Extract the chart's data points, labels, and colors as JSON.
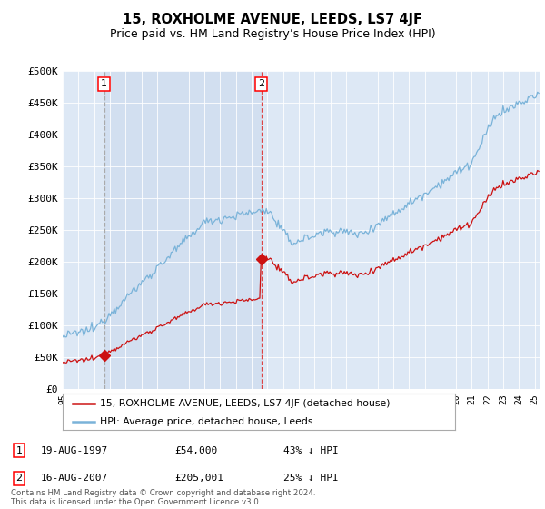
{
  "title": "15, ROXHOLME AVENUE, LEEDS, LS7 4JF",
  "subtitle": "Price paid vs. HM Land Registry’s House Price Index (HPI)",
  "ylim": [
    0,
    500000
  ],
  "yticks": [
    0,
    50000,
    100000,
    150000,
    200000,
    250000,
    300000,
    350000,
    400000,
    450000,
    500000
  ],
  "ytick_labels": [
    "£0",
    "£50K",
    "£100K",
    "£150K",
    "£200K",
    "£250K",
    "£300K",
    "£350K",
    "£400K",
    "£450K",
    "£500K"
  ],
  "background_color": "#dde8f5",
  "hpi_color": "#7ab3d9",
  "price_color": "#cc1111",
  "marker_color": "#cc1111",
  "dashed1_color": "#aaaaaa",
  "dashed2_color": "#dd4444",
  "transaction1_year": 1997.63,
  "transaction1_price": 54000,
  "transaction1_date": "19-AUG-1997",
  "transaction1_hpi_pct": "43% ↓ HPI",
  "transaction2_year": 2007.63,
  "transaction2_price": 205001,
  "transaction2_date": "16-AUG-2007",
  "transaction2_hpi_pct": "25% ↓ HPI",
  "footer": "Contains HM Land Registry data © Crown copyright and database right 2024.\nThis data is licensed under the Open Government Licence v3.0.",
  "legend_line1": "15, ROXHOLME AVENUE, LEEDS, LS7 4JF (detached house)",
  "legend_line2": "HPI: Average price, detached house, Leeds",
  "title_fontsize": 10.5,
  "subtitle_fontsize": 9,
  "shade_color": "#ccd9ee"
}
